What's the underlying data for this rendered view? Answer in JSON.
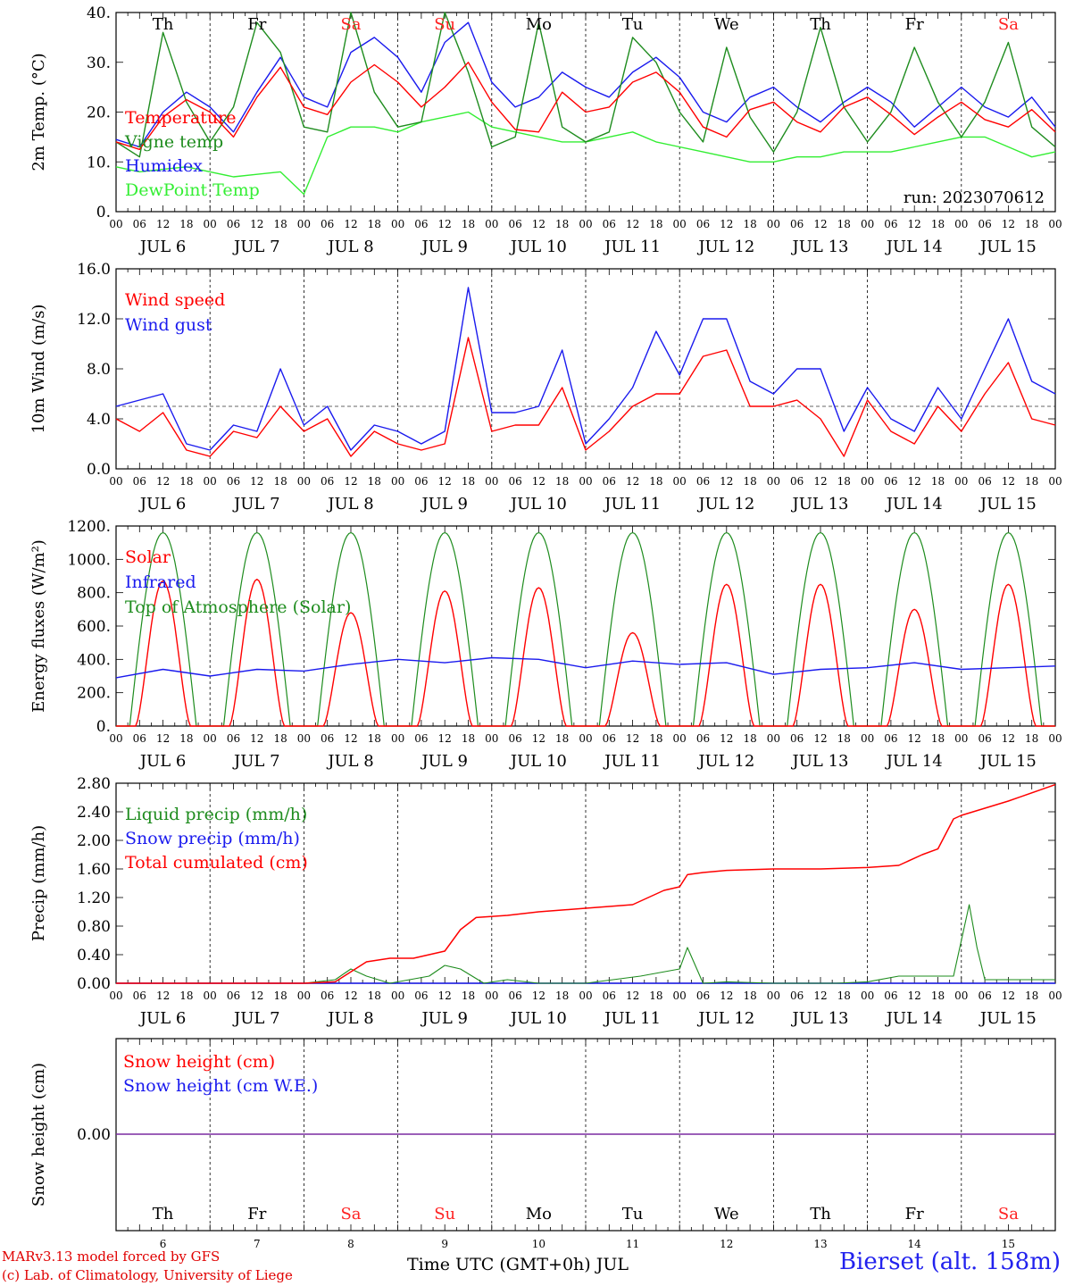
{
  "chart_data": [
    {
      "type": "line",
      "ylabel": "2m Temp. (°C)",
      "ylim": [
        0,
        40
      ],
      "yticks": [
        "0.",
        "10.",
        "20.",
        "30.",
        "40."
      ],
      "run_label": "run: 2023070612",
      "legend_position": "left",
      "series": [
        {
          "name": "Temperature",
          "color": "#ff0000",
          "x": [
            0,
            6,
            12,
            18,
            24,
            30,
            36,
            42,
            48,
            54,
            60,
            66,
            72,
            78,
            84,
            90,
            96,
            102,
            108,
            114,
            120,
            126,
            132,
            138,
            144,
            150,
            156,
            162,
            168,
            174,
            180,
            186,
            192,
            198,
            204,
            210,
            216,
            222,
            228,
            234,
            240
          ],
          "values": [
            14,
            12.5,
            19,
            22.5,
            20,
            15,
            23,
            29,
            21,
            19.5,
            26,
            29.5,
            26,
            21,
            25,
            30,
            22,
            16.5,
            16,
            24,
            20,
            21,
            26,
            28,
            24,
            17,
            15,
            20.5,
            22,
            18,
            16,
            21,
            23,
            19.5,
            15.5,
            19,
            22,
            18.5,
            17,
            20.5,
            16
          ]
        },
        {
          "name": "Vigne temp",
          "color": "#1e8c1e",
          "x": [
            0,
            6,
            12,
            18,
            24,
            30,
            36,
            42,
            48,
            54,
            60,
            66,
            72,
            78,
            84,
            90,
            96,
            102,
            108,
            114,
            120,
            126,
            132,
            138,
            144,
            150,
            156,
            162,
            168,
            174,
            180,
            186,
            192,
            198,
            204,
            210,
            216,
            222,
            228,
            234,
            240
          ],
          "values": [
            14,
            11,
            36,
            22,
            14,
            21,
            38,
            32,
            17,
            16,
            40,
            24,
            17,
            18,
            40,
            28,
            13,
            15,
            38,
            17,
            14,
            16,
            35,
            30,
            20,
            14,
            33,
            19,
            12,
            20,
            37,
            21,
            14,
            20,
            33,
            22,
            15,
            22,
            34,
            17,
            13
          ]
        },
        {
          "name": "Humidex",
          "color": "#1a1aee",
          "x": [
            0,
            6,
            12,
            18,
            24,
            30,
            36,
            42,
            48,
            54,
            60,
            66,
            72,
            78,
            84,
            90,
            96,
            102,
            108,
            114,
            120,
            126,
            132,
            138,
            144,
            150,
            156,
            162,
            168,
            174,
            180,
            186,
            192,
            198,
            204,
            210,
            216,
            222,
            228,
            234,
            240
          ],
          "values": [
            14.5,
            13,
            20,
            24,
            21,
            16,
            24,
            31,
            23,
            21,
            32,
            35,
            31,
            24,
            34,
            38,
            26,
            21,
            23,
            28,
            25,
            23,
            28,
            31,
            27,
            20,
            18,
            23,
            25,
            21,
            18,
            22,
            25,
            22,
            17,
            21,
            25,
            21,
            19,
            23,
            17
          ]
        },
        {
          "name": "DewPoint Temp",
          "color": "#33ee33",
          "x": [
            0,
            6,
            12,
            18,
            24,
            30,
            36,
            42,
            48,
            54,
            60,
            66,
            72,
            78,
            84,
            90,
            96,
            102,
            108,
            114,
            120,
            126,
            132,
            138,
            144,
            150,
            156,
            162,
            168,
            174,
            180,
            186,
            192,
            198,
            204,
            210,
            216,
            222,
            228,
            234,
            240
          ],
          "values": [
            9,
            8,
            8.5,
            9,
            8,
            7,
            7.5,
            8,
            3.5,
            15,
            17,
            17,
            16,
            18,
            19,
            20,
            17,
            16,
            15,
            14,
            14,
            15,
            16,
            14,
            13,
            12,
            11,
            10,
            10,
            11,
            11,
            12,
            12,
            12,
            13,
            14,
            15,
            15,
            13,
            11,
            12
          ]
        }
      ]
    },
    {
      "type": "line",
      "ylabel": "10m Wind (m/s)",
      "ylim": [
        0,
        16
      ],
      "yticks": [
        "0.0",
        "4.0",
        "8.0",
        "12.0",
        "16.0"
      ],
      "reference_line": 5,
      "legend_position": "left",
      "series": [
        {
          "name": "Wind speed",
          "color": "#ff0000",
          "x": [
            0,
            6,
            12,
            18,
            24,
            30,
            36,
            42,
            48,
            54,
            60,
            66,
            72,
            78,
            84,
            90,
            96,
            102,
            108,
            114,
            120,
            126,
            132,
            138,
            144,
            150,
            156,
            162,
            168,
            174,
            180,
            186,
            192,
            198,
            204,
            210,
            216,
            222,
            228,
            234,
            240
          ],
          "values": [
            4,
            3,
            4.5,
            1.5,
            1,
            3,
            2.5,
            5,
            3,
            4,
            1,
            3,
            2,
            1.5,
            2,
            10.5,
            3,
            3.5,
            3.5,
            6.5,
            1.5,
            3,
            5,
            6,
            6,
            9,
            9.5,
            5,
            5,
            5.5,
            4,
            1,
            5.5,
            3,
            2,
            5,
            3,
            6,
            8.5,
            4,
            3.5
          ]
        },
        {
          "name": "Wind gust",
          "color": "#1a1aee",
          "x": [
            0,
            6,
            12,
            18,
            24,
            30,
            36,
            42,
            48,
            54,
            60,
            66,
            72,
            78,
            84,
            90,
            96,
            102,
            108,
            114,
            120,
            126,
            132,
            138,
            144,
            150,
            156,
            162,
            168,
            174,
            180,
            186,
            192,
            198,
            204,
            210,
            216,
            222,
            228,
            234,
            240
          ],
          "values": [
            5,
            5.5,
            6,
            2,
            1.5,
            3.5,
            3,
            8,
            3.5,
            5,
            1.5,
            3.5,
            3,
            2,
            3,
            14.5,
            4.5,
            4.5,
            5,
            9.5,
            2,
            4,
            6.5,
            11,
            7.5,
            12,
            12,
            7,
            6,
            8,
            8,
            3,
            6.5,
            4,
            3,
            6.5,
            4,
            8,
            12,
            7,
            6
          ]
        }
      ]
    },
    {
      "type": "line",
      "ylabel": "Energy fluxes (W/m²)",
      "ylim": [
        0,
        1200
      ],
      "yticks": [
        "0.",
        "200.",
        "400.",
        "600.",
        "800.",
        "1000.",
        "1200."
      ],
      "legend_position": "left",
      "series": [
        {
          "name": "Solar",
          "color": "#ff0000",
          "day_peaks": [
            870,
            880,
            680,
            810,
            830,
            560,
            850,
            850,
            700,
            850
          ]
        },
        {
          "name": "Infrared",
          "color": "#1a1aee",
          "x": [
            0,
            12,
            24,
            36,
            48,
            60,
            72,
            84,
            96,
            108,
            120,
            132,
            144,
            156,
            168,
            180,
            192,
            204,
            216,
            228,
            240
          ],
          "values": [
            290,
            340,
            300,
            340,
            330,
            370,
            400,
            380,
            410,
            400,
            350,
            390,
            370,
            380,
            310,
            340,
            350,
            380,
            340,
            350,
            360
          ]
        },
        {
          "name": "Top of Atmosphere (Solar)",
          "color": "#1e8c1e",
          "day_peak": 1160
        }
      ]
    },
    {
      "type": "line",
      "ylabel": "Precip (mm/h)",
      "ylim": [
        0,
        2.8
      ],
      "yticks": [
        "0.00",
        "0.40",
        "0.80",
        "1.20",
        "1.60",
        "2.00",
        "2.40",
        "2.80"
      ],
      "legend_position": "left",
      "series": [
        {
          "name": "Liquid precip (mm/h)",
          "color": "#1e8c1e",
          "x": [
            0,
            48,
            56,
            60,
            64,
            70,
            80,
            84,
            88,
            94,
            100,
            108,
            120,
            134,
            144,
            146,
            150,
            156,
            168,
            184,
            192,
            200,
            206,
            214,
            218,
            220,
            222,
            228,
            240
          ],
          "values": [
            0,
            0,
            0.05,
            0.2,
            0.1,
            0,
            0.1,
            0.25,
            0.2,
            0,
            0.05,
            0,
            0,
            0.1,
            0.2,
            0.5,
            0,
            0.02,
            0,
            0,
            0.02,
            0.1,
            0.1,
            0.1,
            1.1,
            0.5,
            0.05,
            0.05,
            0.05
          ]
        },
        {
          "name": "Snow precip (mm/h)",
          "color": "#1a1aee",
          "x": [
            0,
            240
          ],
          "values": [
            0,
            0
          ]
        },
        {
          "name": "Total cumulated (cm)",
          "color": "#ff0000",
          "x": [
            0,
            48,
            56,
            64,
            70,
            76,
            84,
            88,
            92,
            100,
            108,
            120,
            132,
            140,
            144,
            146,
            150,
            156,
            168,
            180,
            192,
            200,
            206,
            210,
            214,
            216,
            228,
            240
          ],
          "values": [
            0,
            0,
            0.02,
            0.3,
            0.35,
            0.35,
            0.45,
            0.75,
            0.92,
            0.95,
            1.0,
            1.05,
            1.1,
            1.3,
            1.35,
            1.52,
            1.55,
            1.58,
            1.6,
            1.6,
            1.62,
            1.65,
            1.8,
            1.88,
            2.3,
            2.35,
            2.55,
            2.78
          ]
        }
      ]
    },
    {
      "type": "line",
      "ylabel": "Snow height (cm)",
      "ytick": "0.00",
      "legend_position": "left",
      "series": [
        {
          "name": "Snow height (cm)",
          "color": "#ff0000",
          "x": [
            0,
            240
          ],
          "values": [
            0,
            0
          ]
        },
        {
          "name": "Snow height (cm W.E.)",
          "color": "#1a1aee",
          "x": [
            0,
            240
          ],
          "values": [
            0,
            0
          ]
        }
      ]
    }
  ],
  "x_axis": {
    "hour_ticks": [
      "00",
      "06",
      "12",
      "18"
    ],
    "end_tick": "00",
    "day_labels": [
      "JUL  6",
      "JUL  7",
      "JUL  8",
      "JUL  9",
      "JUL 10",
      "JUL 11",
      "JUL 12",
      "JUL 13",
      "JUL 14",
      "JUL 15"
    ],
    "weekdays": [
      "Th",
      "Fr",
      "Sa",
      "Su",
      "Mo",
      "Tu",
      "We",
      "Th",
      "Fr",
      "Sa"
    ],
    "weekend_color": "#ff2222",
    "day_numbers": [
      "6",
      "7",
      "8",
      "9",
      "10",
      "11",
      "12",
      "13",
      "14",
      "15"
    ]
  },
  "footer": {
    "credit_line1": "MARv3.13 model forced by GFS",
    "credit_line2": "(c) Lab. of Climatology, University of Liege",
    "xlabel": "Time UTC (GMT+0h) JUL",
    "station": "Bierset (alt. 158m)"
  }
}
